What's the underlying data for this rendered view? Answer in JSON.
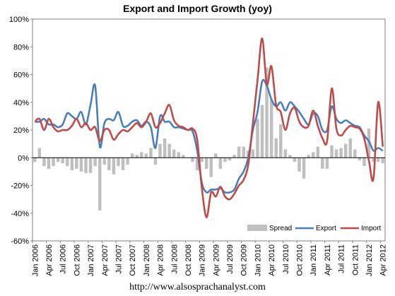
{
  "chart_data": {
    "type": "bar+line",
    "title": "Export and Import Growth (yoy)",
    "source_text": "http://www.alsosprachanalyst.com",
    "ylim": [
      -60,
      100
    ],
    "yticks": [
      "100%",
      "80%",
      "60%",
      "40%",
      "20%",
      "0%",
      "-20%",
      "-40%",
      "-60%"
    ],
    "ytick_values": [
      100,
      80,
      60,
      40,
      20,
      0,
      -20,
      -40,
      -60
    ],
    "x_tick_labels": [
      "Jan 2006",
      "Apr 2006",
      "Jul 2006",
      "Oct 2006",
      "Jan 2007",
      "Apr 2007",
      "Jul 2007",
      "Oct 2007",
      "Jan 2008",
      "Apr 2008",
      "Jul 2008",
      "Oct 2008",
      "Jan 2009",
      "Apr 2009",
      "Jul 2009",
      "Oct 2009",
      "Jan 2010",
      "Apr 2010",
      "Jul 2010",
      "Oct 2010",
      "Jan 2011",
      "Apr 2011",
      "Jul 2011",
      "Oct 2011",
      "Jan 2012",
      "Apr 2012"
    ],
    "legend": [
      "Spread",
      "Export",
      "Import"
    ],
    "legend_position": "bottom-right",
    "colors": {
      "spread": "#bfbfbf",
      "export": "#4a7ebb",
      "import": "#be4b48"
    },
    "months": 76,
    "start": "Jan 2006",
    "series": [
      {
        "name": "Spread",
        "kind": "bar",
        "values": [
          -3,
          7,
          -6,
          -8,
          -6,
          -3,
          -4,
          -6,
          -9,
          -8,
          -10,
          -11,
          -11,
          -6,
          -38,
          -5,
          -9,
          -12,
          -6,
          -9,
          -5,
          3,
          2,
          4,
          3,
          7,
          -5,
          10,
          14,
          10,
          6,
          4,
          2,
          0,
          -3,
          -9,
          -3,
          -8,
          -14,
          3,
          -8,
          -3,
          -2,
          2,
          8,
          8,
          5,
          6,
          28,
          38,
          65,
          42,
          14,
          24,
          6,
          2,
          -3,
          -10,
          -15,
          2,
          4,
          8,
          -8,
          -8,
          9,
          6,
          7,
          10,
          14,
          6,
          -2,
          -6,
          21,
          -3,
          -3,
          -4
        ]
      },
      {
        "name": "Export",
        "kind": "line",
        "values": [
          26,
          26,
          28,
          24,
          24,
          22,
          24,
          32,
          30,
          28,
          33,
          24,
          38,
          52,
          8,
          25,
          28,
          27,
          33,
          23,
          23,
          26,
          27,
          23,
          26,
          22,
          7,
          30,
          26,
          26,
          22,
          22,
          21,
          20,
          19,
          5,
          -18,
          -25,
          -23,
          -23,
          -22,
          -25,
          -25,
          -23,
          -15,
          -10,
          0,
          20,
          33,
          55,
          52,
          42,
          37,
          40,
          34,
          40,
          37,
          33,
          28,
          24,
          32,
          30,
          20,
          20,
          37,
          28,
          25,
          27,
          25,
          23,
          22,
          16,
          12,
          5,
          7,
          5
        ]
      },
      {
        "name": "Import",
        "kind": "line",
        "values": [
          26,
          28,
          20,
          28,
          22,
          19,
          20,
          20,
          23,
          28,
          22,
          25,
          20,
          22,
          12,
          20,
          20,
          13,
          17,
          20,
          19,
          22,
          25,
          22,
          26,
          32,
          22,
          25,
          32,
          38,
          27,
          23,
          22,
          20,
          21,
          13,
          -22,
          -43,
          -25,
          -28,
          -21,
          -28,
          -30,
          -26,
          -20,
          -16,
          -5,
          25,
          56,
          86,
          53,
          66,
          38,
          33,
          20,
          32,
          36,
          26,
          22,
          23,
          34,
          23,
          14,
          12,
          50,
          21,
          16,
          20,
          23,
          22,
          21,
          14,
          -2,
          -15,
          40,
          8
        ]
      }
    ]
  }
}
